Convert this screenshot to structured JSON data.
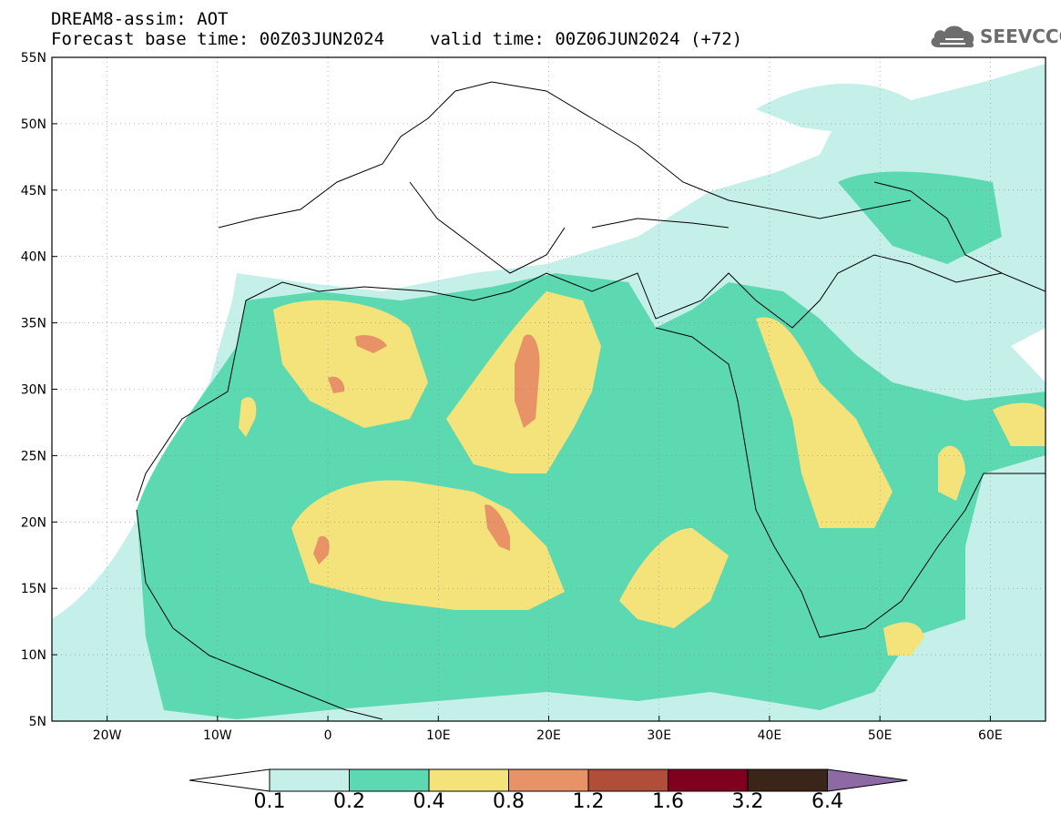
{
  "header": {
    "title_line1": "DREAM8-assim: AOT",
    "base_time": "Forecast base time: 00Z03JUN2024",
    "valid_time": "valid time: 00Z06JUN2024 (+72)"
  },
  "logo": {
    "text": "SEEVCCC",
    "icon": "cloud-logo-icon"
  },
  "map": {
    "lat_labels": [
      "55N",
      "50N",
      "45N",
      "40N",
      "35N",
      "30N",
      "25N",
      "20N",
      "15N",
      "10N",
      "5N"
    ],
    "lon_labels": [
      "20W",
      "10W",
      "0",
      "10E",
      "20E",
      "30E",
      "40E",
      "50E",
      "60E"
    ],
    "lon_range": [
      -25,
      65
    ],
    "lat_range": [
      5,
      55
    ],
    "gridlines": true
  },
  "colorbar": {
    "labels": [
      "0.1",
      "0.2",
      "0.4",
      "0.8",
      "1.2",
      "1.6",
      "3.2",
      "6.4"
    ],
    "colors": [
      "#c5f0ea",
      "#5dd9b2",
      "#f4e27a",
      "#e89268",
      "#b04e3a",
      "#800020",
      "#3b2418",
      "#8e6aa5"
    ],
    "below_color": "#ffffff"
  }
}
